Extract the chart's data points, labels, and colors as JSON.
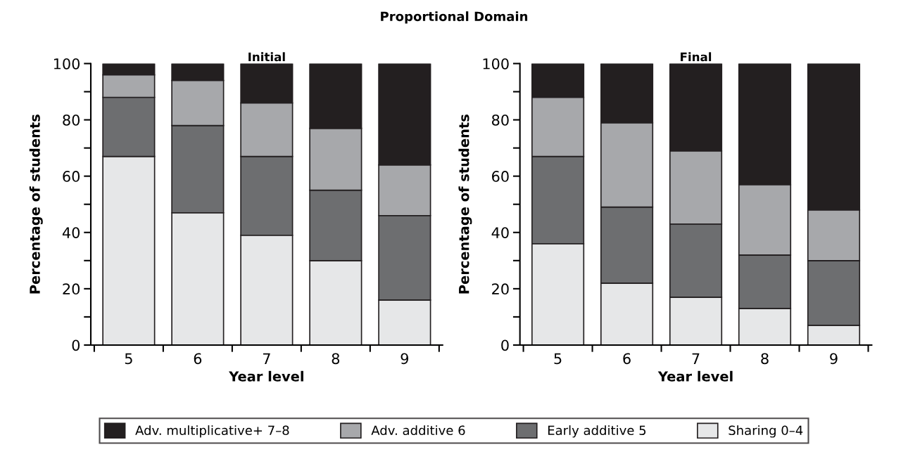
{
  "chart_data": [
    {
      "type": "bar",
      "stacked": true,
      "title": "Proportional Domain",
      "subtitle": "Initial",
      "xlabel": "Year level",
      "ylabel": "Percentage of students",
      "categories": [
        "5",
        "6",
        "7",
        "8",
        "9"
      ],
      "series": [
        {
          "name": "Sharing 0–4",
          "color": "#e6e7e8",
          "values": [
            67,
            47,
            39,
            30,
            16
          ]
        },
        {
          "name": "Early additive 5",
          "color": "#6d6e70",
          "values": [
            21,
            31,
            28,
            25,
            30
          ]
        },
        {
          "name": "Adv. additive 6",
          "color": "#a7a8ab",
          "values": [
            8,
            16,
            19,
            22,
            18
          ]
        },
        {
          "name": "Adv. multiplicative+ 7–8",
          "color": "#231f20",
          "values": [
            4,
            6,
            14,
            23,
            36
          ]
        }
      ],
      "ylim": [
        0,
        100
      ],
      "yticks": [
        0,
        {
          "value": 10,
          "label": null
        },
        20,
        {
          "value": 30,
          "label": null
        },
        40,
        {
          "value": 50,
          "label": null
        },
        60,
        {
          "value": 70,
          "label": null
        },
        80,
        {
          "value": 90,
          "label": null
        },
        100
      ],
      "legend": "bottom"
    },
    {
      "type": "bar",
      "stacked": true,
      "subtitle": "Final",
      "xlabel": "Year level",
      "ylabel": "Percentage of students",
      "categories": [
        "5",
        "6",
        "7",
        "8",
        "9"
      ],
      "series": [
        {
          "color": "#e6e7e8",
          "values": [
            36,
            22,
            17,
            13,
            7
          ]
        },
        {
          "color": "#6d6e70",
          "values": [
            31,
            27,
            26,
            19,
            23
          ]
        },
        {
          "color": "#a7a8ab",
          "values": [
            21,
            30,
            26,
            25,
            18
          ]
        },
        {
          "color": "#231f20",
          "values": [
            12,
            21,
            31,
            43,
            52
          ]
        }
      ],
      "ylim": [
        0,
        100
      ],
      "yticks": [
        0,
        {
          "value": 10,
          "label": null
        },
        20,
        {
          "value": 30,
          "label": null
        },
        40,
        {
          "value": 50,
          "label": null
        },
        60,
        {
          "value": 70,
          "label": null
        },
        80,
        {
          "value": 90,
          "label": null
        },
        100
      ]
    }
  ]
}
